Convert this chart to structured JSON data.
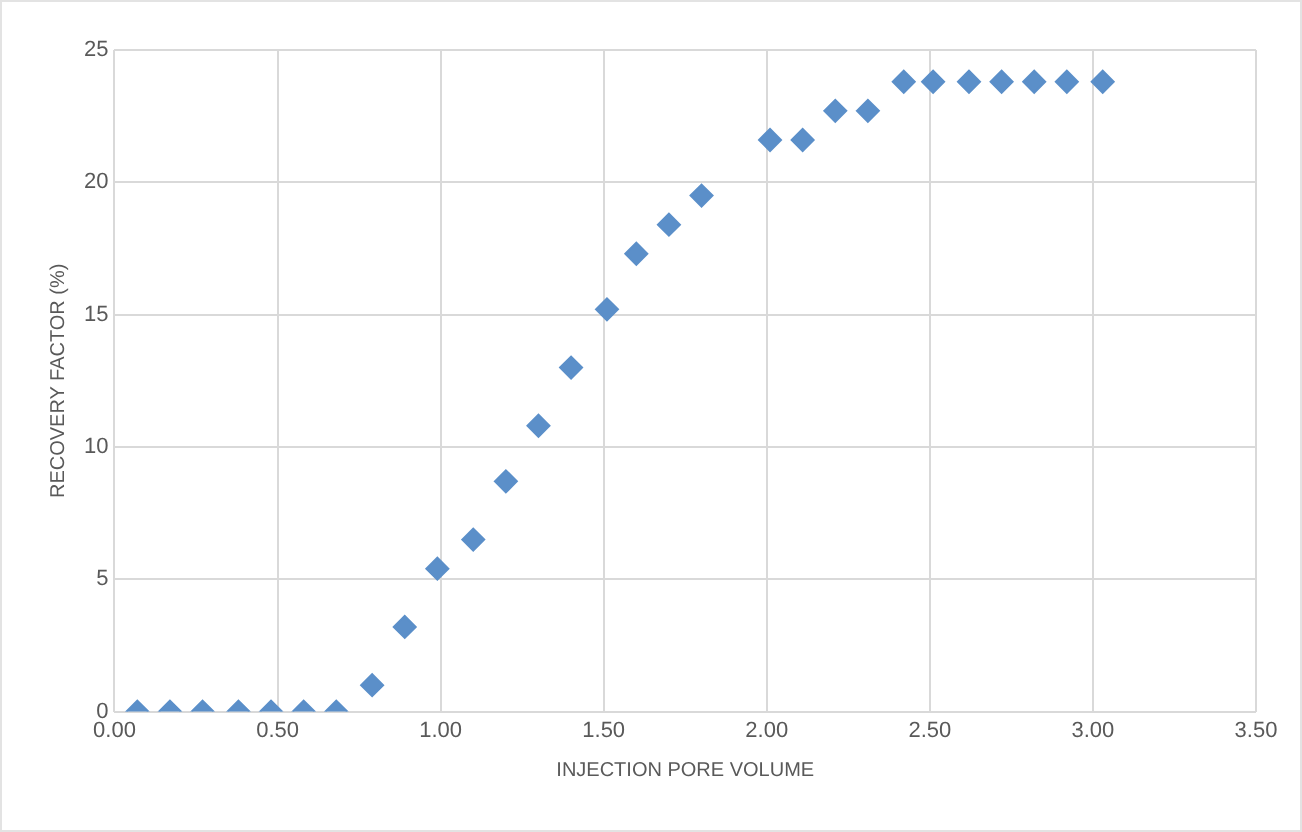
{
  "chart_data": {
    "type": "scatter",
    "xlabel": "INJECTION PORE VOLUME",
    "ylabel": "RECOVERY FACTOR (%)",
    "x": [
      0.07,
      0.17,
      0.27,
      0.38,
      0.48,
      0.58,
      0.68,
      0.79,
      0.89,
      0.99,
      1.1,
      1.2,
      1.3,
      1.4,
      1.51,
      1.6,
      1.7,
      1.8,
      2.01,
      2.11,
      2.21,
      2.31,
      2.42,
      2.51,
      2.62,
      2.72,
      2.82,
      2.92,
      3.03
    ],
    "series": [
      {
        "color": "#5b8fc9",
        "values": [
          0,
          0,
          0,
          0,
          0,
          0,
          0,
          1.0,
          3.2,
          5.4,
          6.5,
          8.7,
          10.8,
          13.0,
          15.2,
          17.3,
          18.4,
          19.5,
          21.6,
          21.6,
          22.7,
          22.7,
          23.8,
          23.8,
          23.8,
          23.8,
          23.8,
          23.8,
          23.8
        ]
      }
    ],
    "xlim": [
      0,
      3.5
    ],
    "xticks": [
      {
        "value": 0,
        "label": "0.00"
      },
      {
        "value": 0.5,
        "label": "0.50"
      },
      {
        "value": 1,
        "label": "1.00"
      },
      {
        "value": 1.5,
        "label": "1.50"
      },
      {
        "value": 2,
        "label": "2.00"
      },
      {
        "value": 2.5,
        "label": "2.50"
      },
      {
        "value": 3,
        "label": "3.00"
      },
      {
        "value": 3.5,
        "label": "3.50"
      }
    ],
    "ylim": [
      0,
      25
    ],
    "yticks": [
      0,
      5,
      10,
      15,
      20,
      25
    ],
    "grid": true,
    "legend": false,
    "marker": "diamond"
  }
}
